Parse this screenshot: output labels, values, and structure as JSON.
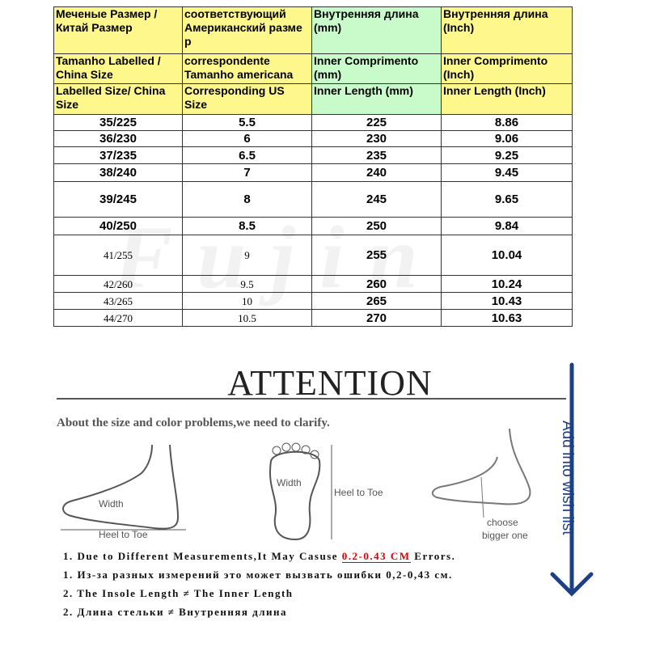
{
  "table": {
    "header_rows": [
      [
        "Меченые Размер / Китай Размер",
        "соответствующий Американский разме р",
        "Внутренняя длина (mm)",
        "Внутренняя длина (Inch)"
      ],
      [
        "Tamanho Labelled / China Size",
        "correspondente Tamanho americana",
        "Inner Comprimento (mm)",
        "Inner Comprimento (Inch)"
      ],
      [
        "Labelled Size/ China Size",
        "Corresponding US Size",
        "Inner Length (mm)",
        "Inner Length (Inch)"
      ]
    ],
    "rows": [
      [
        "35/225",
        "5.5",
        "225",
        "8.86"
      ],
      [
        "36/230",
        "6",
        "230",
        "9.06"
      ],
      [
        "37/235",
        "6.5",
        "235",
        "9.25"
      ],
      [
        "38/240",
        "7",
        "240",
        "9.45"
      ],
      [
        "39/245",
        "8",
        "245",
        "9.65"
      ],
      [
        "40/250",
        "8.5",
        "250",
        "9.84"
      ],
      [
        "41/255",
        "9",
        "255",
        "10.04"
      ],
      [
        "42/260",
        "9.5",
        "260",
        "10.24"
      ],
      [
        "43/265",
        "10",
        "265",
        "10.43"
      ],
      [
        "44/270",
        "10.5",
        "270",
        "10.63"
      ]
    ]
  },
  "watermark": "Fujin",
  "attention": {
    "title": "ATTENTION",
    "subtitle": "About the size and color problems,we need to clarify.",
    "labels": {
      "width": "Width",
      "heel_to_toe": "Heel to Toe",
      "choose": "choose",
      "bigger": "bigger one"
    },
    "wish": "Add into wish list",
    "notes": {
      "n1_pre": "1. Due to Different Measurements,It May Casuse ",
      "n1_red": "0.2-0.43 CM",
      "n1_post": " Errors.",
      "n2": "1. Из-за разных измерений это может вызвать ошибки 0,2-0,43 см.",
      "n3": "2. The Insole Length ≠ The Inner Length",
      "n4": "2. Длина стельки ≠ Внутренняя длина"
    }
  },
  "colors": {
    "yellow": "#fef88c",
    "green": "#c8fbc9",
    "red": "#dd0000",
    "arrow": "#1d3f86"
  }
}
